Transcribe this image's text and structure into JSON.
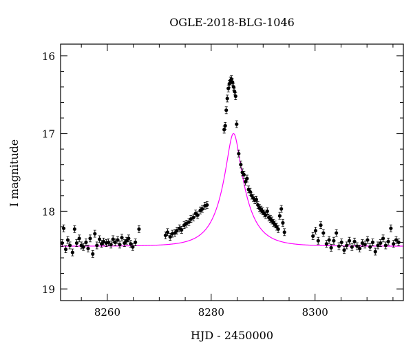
{
  "chart_data": {
    "type": "scatter",
    "title": "OGLE-2018-BLG-1046",
    "xlabel": "HJD - 2450000",
    "ylabel": "I magnitude",
    "xlim": [
      8251,
      8317
    ],
    "ylim": [
      19.15,
      15.85
    ],
    "y_inverted": true,
    "x_ticks": [
      8260,
      8280,
      8300
    ],
    "y_ticks": [
      16,
      17,
      18,
      19
    ],
    "grid": false,
    "point_color": "#000000",
    "model_color": "#ff00ff",
    "model": {
      "type": "point-lens microlensing fit",
      "t0": 8284.3,
      "tE": 4.5,
      "u0": 0.27,
      "baseline_mag": 18.45
    },
    "series": [
      {
        "x": [
          8251.3,
          8251.6,
          8252.0,
          8252.4,
          8252.8,
          8253.3,
          8253.7,
          8254.1,
          8254.6,
          8255.0,
          8255.4,
          8255.9,
          8256.3,
          8256.7,
          8257.2,
          8257.6,
          8258.0,
          8258.5,
          8258.9,
          8259.3,
          8259.8,
          8260.2,
          8260.7,
          8261.1,
          8261.5,
          8262.0,
          8262.4,
          8262.8,
          8263.3,
          8263.7,
          8264.1,
          8264.5,
          8264.9,
          8265.4,
          8266.1,
          8271.2,
          8271.6,
          8272.1,
          8272.5,
          8273.0,
          8273.4,
          8273.9,
          8274.3,
          8274.8,
          8275.2,
          8275.7,
          8276.1,
          8276.6,
          8277.0,
          8277.4,
          8277.9,
          8278.3,
          8278.8,
          8279.2,
          8282.5,
          8282.7,
          8282.9,
          8283.1,
          8283.3,
          8283.5,
          8283.7,
          8283.9,
          8284.1,
          8284.3,
          8284.5,
          8284.7,
          8284.9,
          8285.3,
          8285.7,
          8286.0,
          8286.3,
          8286.6,
          8286.9,
          8287.2,
          8287.5,
          8287.8,
          8288.1,
          8288.4,
          8288.7,
          8289.0,
          8289.3,
          8289.6,
          8289.9,
          8290.2,
          8290.5,
          8290.8,
          8291.1,
          8291.4,
          8291.7,
          8292.0,
          8292.3,
          8292.6,
          8292.9,
          8293.2,
          8293.5,
          8293.8,
          8294.1,
          8299.6,
          8300.1,
          8300.6,
          8301.1,
          8301.6,
          8302.2,
          8302.7,
          8303.1,
          8303.6,
          8304.1,
          8304.6,
          8305.1,
          8305.6,
          8306.1,
          8306.6,
          8307.1,
          8307.6,
          8308.1,
          8308.6,
          8309.1,
          8309.6,
          8310.1,
          8310.6,
          8311.1,
          8311.6,
          8312.1,
          8312.6,
          8313.1,
          8313.6,
          8314.1,
          8314.6,
          8315.1,
          8315.6,
          8316.1
        ],
        "y": [
          18.41,
          18.22,
          18.49,
          18.37,
          18.44,
          18.53,
          18.23,
          18.41,
          18.35,
          18.44,
          18.46,
          18.4,
          18.48,
          18.35,
          18.55,
          18.29,
          18.44,
          18.36,
          18.42,
          18.39,
          18.41,
          18.4,
          18.43,
          18.36,
          18.4,
          18.37,
          18.43,
          18.34,
          18.41,
          18.38,
          18.35,
          18.42,
          18.46,
          18.4,
          18.23,
          18.31,
          18.27,
          18.33,
          18.29,
          18.28,
          18.25,
          18.22,
          18.24,
          18.18,
          18.16,
          18.14,
          18.1,
          18.08,
          18.03,
          18.05,
          17.99,
          17.97,
          17.93,
          17.92,
          16.95,
          16.9,
          16.7,
          16.55,
          16.42,
          16.36,
          16.32,
          16.3,
          16.34,
          16.4,
          16.46,
          16.52,
          16.88,
          17.26,
          17.4,
          17.5,
          17.53,
          17.62,
          17.58,
          17.72,
          17.75,
          17.8,
          17.83,
          17.86,
          17.85,
          17.92,
          17.96,
          17.98,
          18.0,
          18.03,
          18.05,
          18.0,
          18.08,
          18.1,
          18.12,
          18.15,
          18.17,
          18.2,
          18.23,
          18.06,
          17.97,
          18.15,
          18.27,
          18.32,
          18.25,
          18.38,
          18.18,
          18.28,
          18.42,
          18.37,
          18.47,
          18.38,
          18.28,
          18.45,
          18.4,
          18.5,
          18.44,
          18.38,
          18.46,
          18.39,
          18.45,
          18.48,
          18.41,
          18.43,
          18.37,
          18.46,
          18.4,
          18.52,
          18.44,
          18.41,
          18.35,
          18.44,
          18.39,
          18.22,
          18.42,
          18.37,
          18.4
        ]
      }
    ]
  }
}
